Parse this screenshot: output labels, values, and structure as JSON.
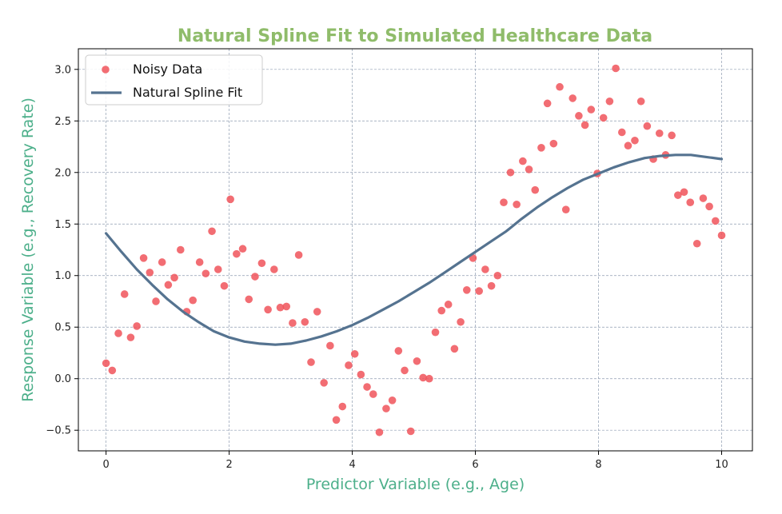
{
  "chart_data": {
    "type": "scatter",
    "title": "Natural Spline Fit to Simulated Healthcare Data",
    "xlabel": "Predictor Variable (e.g., Age)",
    "ylabel": "Response Variable (e.g., Recovery Rate)",
    "xlim": [
      -0.45,
      10.5
    ],
    "ylim": [
      -0.7,
      3.2
    ],
    "xticks": [
      0,
      2,
      4,
      6,
      8,
      10
    ],
    "yticks": [
      -0.5,
      0.0,
      0.5,
      1.0,
      1.5,
      2.0,
      2.5,
      3.0
    ],
    "xtick_labels": [
      "0",
      "2",
      "4",
      "6",
      "8",
      "10"
    ],
    "ytick_labels": [
      "−0.5",
      "0.0",
      "0.5",
      "1.0",
      "1.5",
      "2.0",
      "2.5",
      "3.0"
    ],
    "grid": true,
    "legend_position": "top-left",
    "colors": {
      "title": "#8fbc6a",
      "axis_label": "#4caf8a",
      "scatter": "#f0535a",
      "line": "#557390",
      "grid": "#8e9cb0"
    },
    "series": [
      {
        "name": "Noisy Data",
        "kind": "scatter",
        "x": [
          0.0,
          0.1,
          0.2,
          0.3,
          0.4,
          0.5,
          0.61,
          0.71,
          0.81,
          0.91,
          1.01,
          1.11,
          1.21,
          1.31,
          1.41,
          1.52,
          1.62,
          1.72,
          1.82,
          1.92,
          2.02,
          2.12,
          2.22,
          2.32,
          2.42,
          2.53,
          2.63,
          2.73,
          2.83,
          2.93,
          3.03,
          3.13,
          3.23,
          3.33,
          3.43,
          3.54,
          3.64,
          3.74,
          3.84,
          3.94,
          4.04,
          4.14,
          4.24,
          4.34,
          4.44,
          4.55,
          4.65,
          4.75,
          4.85,
          4.95,
          5.05,
          5.15,
          5.25,
          5.35,
          5.45,
          5.56,
          5.66,
          5.76,
          5.86,
          5.96,
          6.06,
          6.16,
          6.26,
          6.36,
          6.46,
          6.57,
          6.67,
          6.77,
          6.87,
          6.97,
          7.07,
          7.17,
          7.27,
          7.37,
          7.47,
          7.58,
          7.68,
          7.78,
          7.88,
          7.98,
          8.08,
          8.18,
          8.28,
          8.38,
          8.48,
          8.59,
          8.69,
          8.79,
          8.89,
          8.99,
          9.09,
          9.19,
          9.29,
          9.39,
          9.49,
          9.6,
          9.7,
          9.8,
          9.9,
          10.0
        ],
        "y": [
          0.15,
          0.08,
          0.44,
          0.82,
          0.4,
          0.51,
          1.17,
          1.03,
          0.75,
          1.13,
          0.91,
          0.98,
          1.25,
          0.65,
          0.76,
          1.13,
          1.02,
          1.43,
          1.06,
          0.9,
          1.74,
          1.21,
          1.26,
          0.77,
          0.99,
          1.12,
          0.67,
          1.06,
          0.69,
          0.7,
          0.54,
          1.2,
          0.55,
          0.16,
          0.65,
          -0.04,
          0.32,
          -0.4,
          -0.27,
          0.13,
          0.24,
          0.04,
          -0.08,
          -0.15,
          -0.52,
          -0.29,
          -0.21,
          0.27,
          0.08,
          -0.51,
          0.17,
          0.01,
          0.0,
          0.45,
          0.66,
          0.72,
          0.29,
          0.55,
          0.86,
          1.17,
          0.85,
          1.06,
          0.9,
          1.0,
          1.71,
          2.0,
          1.69,
          2.11,
          2.03,
          1.83,
          2.24,
          2.67,
          2.28,
          2.83,
          1.64,
          2.72,
          2.55,
          2.46,
          2.61,
          1.99,
          2.53,
          2.69,
          3.01,
          2.39,
          2.26,
          2.31,
          2.69,
          2.45,
          2.13,
          2.38,
          2.17,
          2.36,
          1.78,
          1.81,
          1.71,
          1.31,
          1.75,
          1.67,
          1.53,
          1.39
        ]
      },
      {
        "name": "Natural Spline Fit",
        "kind": "line",
        "x": [
          0,
          0.25,
          0.5,
          0.75,
          1,
          1.25,
          1.5,
          1.75,
          2,
          2.25,
          2.5,
          2.75,
          3,
          3.25,
          3.5,
          3.75,
          4,
          4.25,
          4.5,
          4.75,
          5,
          5.25,
          5.5,
          5.75,
          6,
          6.25,
          6.5,
          6.75,
          7,
          7.25,
          7.5,
          7.75,
          8,
          8.25,
          8.5,
          8.75,
          9,
          9.25,
          9.5,
          9.75,
          10
        ],
        "y": [
          1.41,
          1.23,
          1.06,
          0.91,
          0.77,
          0.65,
          0.55,
          0.46,
          0.4,
          0.36,
          0.34,
          0.33,
          0.34,
          0.37,
          0.41,
          0.46,
          0.52,
          0.59,
          0.67,
          0.75,
          0.84,
          0.93,
          1.03,
          1.13,
          1.23,
          1.33,
          1.43,
          1.55,
          1.66,
          1.76,
          1.85,
          1.93,
          1.99,
          2.05,
          2.1,
          2.14,
          2.16,
          2.17,
          2.17,
          2.15,
          2.13
        ]
      }
    ]
  }
}
